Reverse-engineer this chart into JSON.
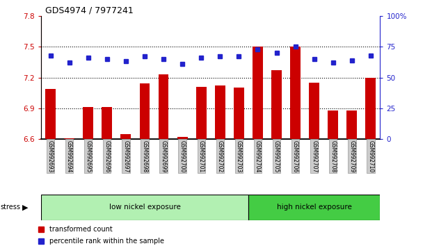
{
  "title": "GDS4974 / 7977241",
  "samples": [
    "GSM992693",
    "GSM992694",
    "GSM992695",
    "GSM992696",
    "GSM992697",
    "GSM992698",
    "GSM992699",
    "GSM992700",
    "GSM992701",
    "GSM992702",
    "GSM992703",
    "GSM992704",
    "GSM992705",
    "GSM992706",
    "GSM992707",
    "GSM992708",
    "GSM992709",
    "GSM992710"
  ],
  "bar_values": [
    7.09,
    6.61,
    6.91,
    6.91,
    6.65,
    7.14,
    7.23,
    6.62,
    7.11,
    7.12,
    7.1,
    7.5,
    7.27,
    7.5,
    7.15,
    6.88,
    6.88,
    7.2
  ],
  "dot_values": [
    68,
    62,
    66,
    65,
    63,
    67,
    65,
    61,
    66,
    67,
    67,
    73,
    70,
    75,
    65,
    62,
    64,
    68
  ],
  "ylim_left": [
    6.6,
    7.8
  ],
  "ylim_right": [
    0,
    100
  ],
  "bar_color": "#cc0000",
  "dot_color": "#2222cc",
  "bar_bottom": 6.6,
  "yticks_left": [
    6.6,
    6.9,
    7.2,
    7.5,
    7.8
  ],
  "yticks_right": [
    0,
    25,
    50,
    75,
    100
  ],
  "hline_values": [
    7.5,
    7.2,
    6.9
  ],
  "group_labels": [
    "low nickel exposure",
    "high nickel exposure"
  ],
  "group_colors_low": "#b2f0b2",
  "group_colors_high": "#44cc44",
  "low_nickel_count": 11,
  "stress_label": "stress",
  "legend_bar_label": "transformed count",
  "legend_dot_label": "percentile rank within the sample",
  "left_tick_color": "#cc0000",
  "right_tick_color": "#2222cc",
  "bg_color": "#ffffff",
  "label_bg_color": "#cccccc"
}
